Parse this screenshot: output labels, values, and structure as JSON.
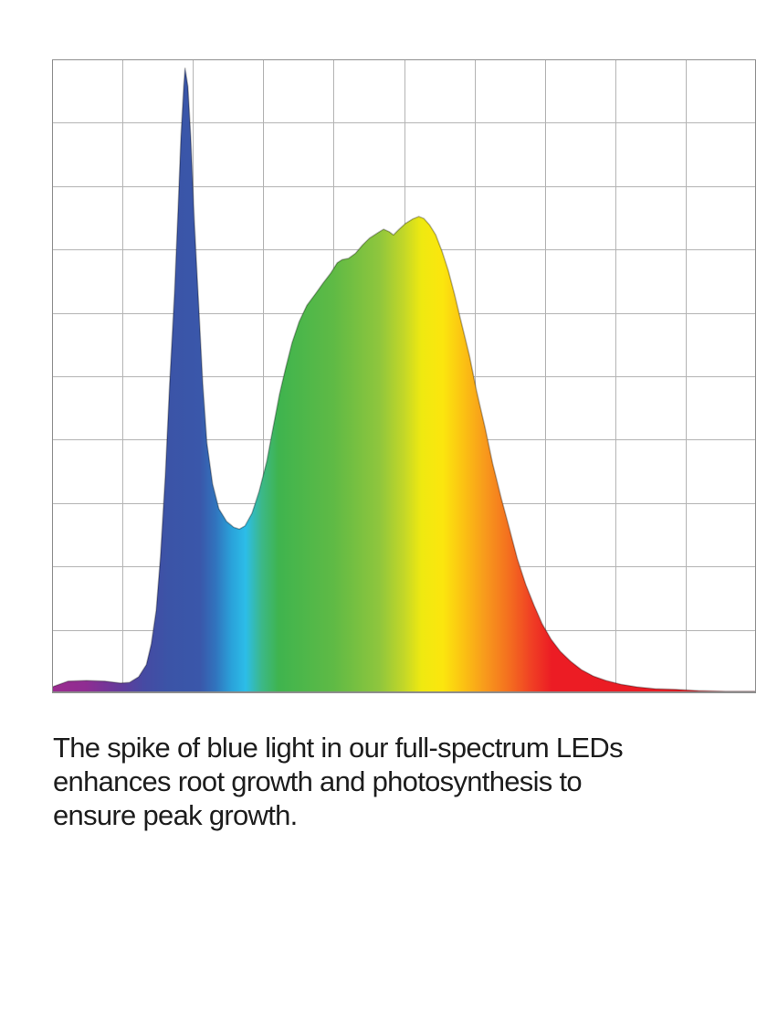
{
  "page": {
    "background": "#ffffff"
  },
  "caption": {
    "text": "The spike of blue light in our full-spectrum LEDs enhances root growth and photosynthesis to ensure peak growth.",
    "lines": [
      "The spike of blue light in our full-spectrum LEDs",
      "enhances root growth and photosynthesis to",
      "ensure peak growth."
    ],
    "color": "#1d1d1d"
  },
  "chart_data": {
    "type": "area",
    "title": "",
    "xlabel": "",
    "ylabel": "",
    "axis_tick_labels_visible": false,
    "legend": "none",
    "description": "Spectral power distribution of a full-spectrum LED: a sharp royal-blue spike near the left (~19% across, reaching ~99% of full scale) and a broad green-yellow hump peaking at ~52% across (~75% of full scale) that decays through orange and red toward the right edge. Fill is a horizontal rainbow gradient (magenta, blue, cyan, green, yellow, orange, red).",
    "grid": {
      "cols": 10,
      "rows": 10,
      "color": "#b3b3b3",
      "border_color": "#8f8f8f",
      "baseline_color": "#8a8a8a"
    },
    "x_range_rel": [
      0,
      1
    ],
    "y_range_rel": [
      0,
      1
    ],
    "outline_color": "rgba(0,0,0,0.28)",
    "points": [
      [
        0.0,
        0.01
      ],
      [
        0.023,
        0.019
      ],
      [
        0.049,
        0.02
      ],
      [
        0.075,
        0.019
      ],
      [
        0.097,
        0.016
      ],
      [
        0.11,
        0.017
      ],
      [
        0.123,
        0.026
      ],
      [
        0.134,
        0.045
      ],
      [
        0.141,
        0.078
      ],
      [
        0.148,
        0.131
      ],
      [
        0.154,
        0.215
      ],
      [
        0.161,
        0.344
      ],
      [
        0.167,
        0.489
      ],
      [
        0.174,
        0.633
      ],
      [
        0.179,
        0.762
      ],
      [
        0.183,
        0.877
      ],
      [
        0.187,
        0.957
      ],
      [
        0.189,
        0.986
      ],
      [
        0.193,
        0.957
      ],
      [
        0.197,
        0.877
      ],
      [
        0.202,
        0.748
      ],
      [
        0.208,
        0.618
      ],
      [
        0.214,
        0.489
      ],
      [
        0.22,
        0.395
      ],
      [
        0.228,
        0.33
      ],
      [
        0.237,
        0.291
      ],
      [
        0.248,
        0.271
      ],
      [
        0.258,
        0.262
      ],
      [
        0.266,
        0.259
      ],
      [
        0.274,
        0.264
      ],
      [
        0.284,
        0.284
      ],
      [
        0.294,
        0.318
      ],
      [
        0.305,
        0.366
      ],
      [
        0.314,
        0.419
      ],
      [
        0.323,
        0.471
      ],
      [
        0.332,
        0.514
      ],
      [
        0.341,
        0.553
      ],
      [
        0.351,
        0.586
      ],
      [
        0.362,
        0.612
      ],
      [
        0.374,
        0.63
      ],
      [
        0.385,
        0.647
      ],
      [
        0.396,
        0.663
      ],
      [
        0.405,
        0.679
      ],
      [
        0.412,
        0.684
      ],
      [
        0.421,
        0.686
      ],
      [
        0.431,
        0.694
      ],
      [
        0.441,
        0.707
      ],
      [
        0.451,
        0.718
      ],
      [
        0.462,
        0.726
      ],
      [
        0.471,
        0.732
      ],
      [
        0.479,
        0.728
      ],
      [
        0.485,
        0.723
      ],
      [
        0.493,
        0.732
      ],
      [
        0.502,
        0.741
      ],
      [
        0.512,
        0.748
      ],
      [
        0.521,
        0.752
      ],
      [
        0.528,
        0.749
      ],
      [
        0.536,
        0.739
      ],
      [
        0.545,
        0.723
      ],
      [
        0.554,
        0.697
      ],
      [
        0.563,
        0.666
      ],
      [
        0.572,
        0.628
      ],
      [
        0.582,
        0.582
      ],
      [
        0.593,
        0.532
      ],
      [
        0.603,
        0.477
      ],
      [
        0.615,
        0.419
      ],
      [
        0.626,
        0.362
      ],
      [
        0.638,
        0.308
      ],
      [
        0.65,
        0.258
      ],
      [
        0.661,
        0.212
      ],
      [
        0.673,
        0.171
      ],
      [
        0.685,
        0.138
      ],
      [
        0.696,
        0.11
      ],
      [
        0.709,
        0.085
      ],
      [
        0.722,
        0.066
      ],
      [
        0.737,
        0.05
      ],
      [
        0.752,
        0.037
      ],
      [
        0.769,
        0.027
      ],
      [
        0.787,
        0.02
      ],
      [
        0.808,
        0.014
      ],
      [
        0.831,
        0.01
      ],
      [
        0.857,
        0.007
      ],
      [
        0.886,
        0.006
      ],
      [
        0.918,
        0.004
      ],
      [
        0.957,
        0.003
      ],
      [
        1.0,
        0.003
      ]
    ],
    "gradient_stops": [
      [
        "0.000",
        "#9B2B8F"
      ],
      [
        "0.048",
        "#8F2D92"
      ],
      [
        "0.095",
        "#653A9B"
      ],
      [
        "0.130",
        "#464AA3"
      ],
      [
        "0.165",
        "#3B54A7"
      ],
      [
        "0.210",
        "#3A57AA"
      ],
      [
        "0.232",
        "#3173BD"
      ],
      [
        "0.255",
        "#2AA2DA"
      ],
      [
        "0.275",
        "#2CBDE8"
      ],
      [
        "0.298",
        "#3CB887"
      ],
      [
        "0.322",
        "#3FB44E"
      ],
      [
        "0.400",
        "#5FBA45"
      ],
      [
        "0.465",
        "#8FC63D"
      ],
      [
        "0.500",
        "#C3D728"
      ],
      [
        "0.525",
        "#EFE910"
      ],
      [
        "0.555",
        "#FBE60E"
      ],
      [
        "0.585",
        "#FBC113"
      ],
      [
        "0.615",
        "#F89A1C"
      ],
      [
        "0.648",
        "#F4701F"
      ],
      [
        "0.680",
        "#F04124"
      ],
      [
        "0.710",
        "#EC1C24"
      ],
      [
        "1.000",
        "#E91C24"
      ]
    ]
  }
}
